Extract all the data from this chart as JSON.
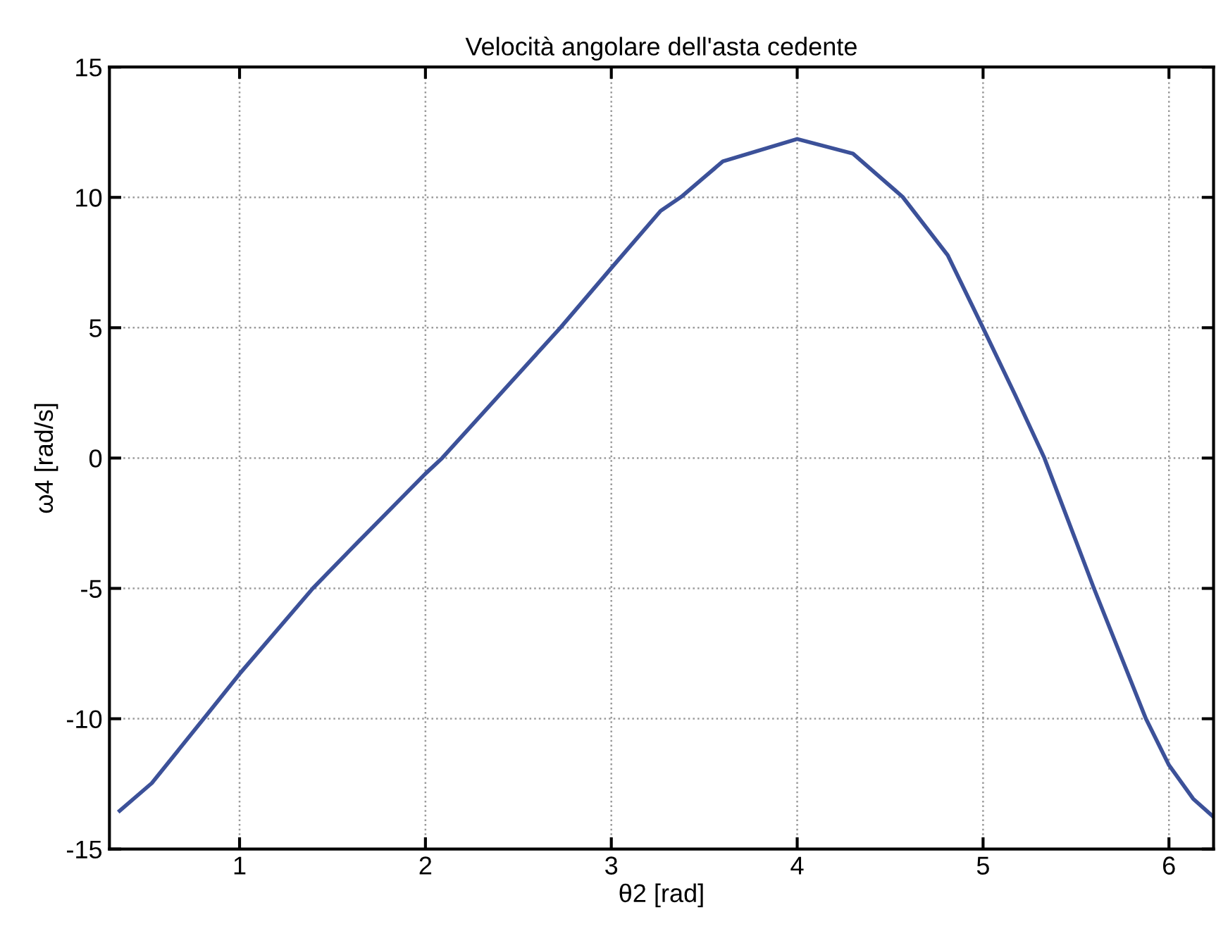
{
  "chart_data": {
    "type": "line",
    "title": "Velocità angolare dell'asta cedente",
    "xlabel": "θ2 [rad]",
    "ylabel": "ω4 [rad/s]",
    "series": [
      {
        "color": "#3c5199",
        "x": [
          0.355,
          0.528,
          0.807,
          1.0,
          1.394,
          1.6,
          2.0,
          2.09,
          2.726,
          3.0,
          3.265,
          3.376,
          3.6,
          4.0,
          4.3,
          4.567,
          4.81,
          5.0,
          5.174,
          5.33,
          5.596,
          5.876,
          6.0,
          6.13,
          6.24
        ],
        "values": [
          -13.53,
          -12.47,
          -10.0,
          -8.28,
          -5.0,
          -3.49,
          -0.6,
          0.0,
          5.0,
          7.29,
          9.48,
          10.02,
          11.38,
          12.24,
          11.68,
          10.02,
          7.78,
          4.99,
          2.4,
          0.0,
          -4.99,
          -10.0,
          -11.78,
          -13.07,
          -13.77
        ]
      }
    ],
    "xlim": [
      0.3,
      6.24
    ],
    "ylim": [
      -15,
      15
    ],
    "xticks": [
      1,
      2,
      3,
      4,
      5,
      6
    ],
    "yticks": [
      -15,
      -10,
      -5,
      0,
      5,
      10,
      15
    ],
    "grid": true,
    "legend": false,
    "marker": "none",
    "line_style": "solid"
  }
}
